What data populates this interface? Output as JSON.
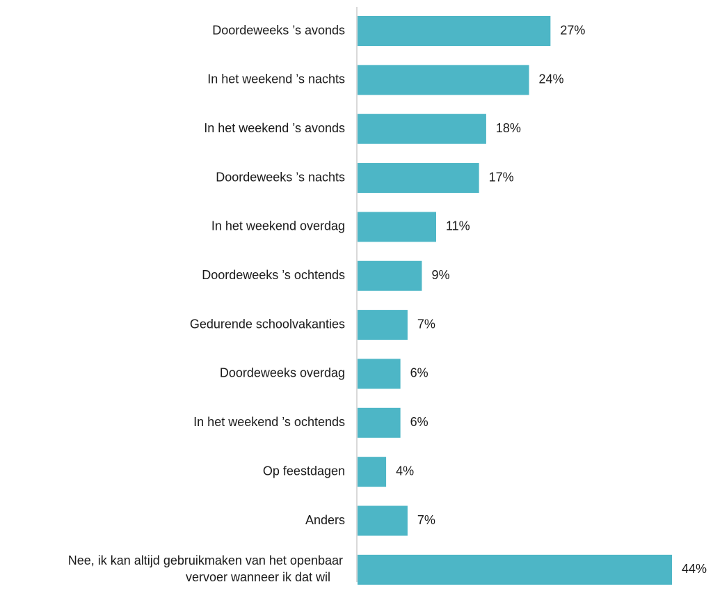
{
  "chart_data": {
    "type": "bar",
    "orientation": "horizontal",
    "categories": [
      [
        "Doordeweeks ’s avonds"
      ],
      [
        "In het weekend ’s nachts"
      ],
      [
        "In het weekend ’s avonds"
      ],
      [
        "Doordeweeks ’s nachts"
      ],
      [
        "In het weekend overdag"
      ],
      [
        "Doordeweeks ’s ochtends"
      ],
      [
        "Gedurende schoolvakanties"
      ],
      [
        "Doordeweeks overdag"
      ],
      [
        "In het weekend ’s ochtends"
      ],
      [
        "Op feestdagen"
      ],
      [
        "Anders"
      ],
      [
        "Nee, ik kan altijd gebruikmaken van het openbaar",
        "vervoer wanneer ik dat wil"
      ]
    ],
    "values": [
      27,
      24,
      18,
      17,
      11,
      9,
      7,
      6,
      6,
      4,
      7,
      44
    ],
    "value_labels": [
      "27%",
      "24%",
      "18%",
      "17%",
      "11%",
      "9%",
      "7%",
      "6%",
      "6%",
      "4%",
      "7%",
      "44%"
    ],
    "bar_color": "#4db6c6",
    "axis_color": "#d9d9d9",
    "grid": false,
    "legend": "none",
    "xlim": [
      0,
      44
    ]
  }
}
